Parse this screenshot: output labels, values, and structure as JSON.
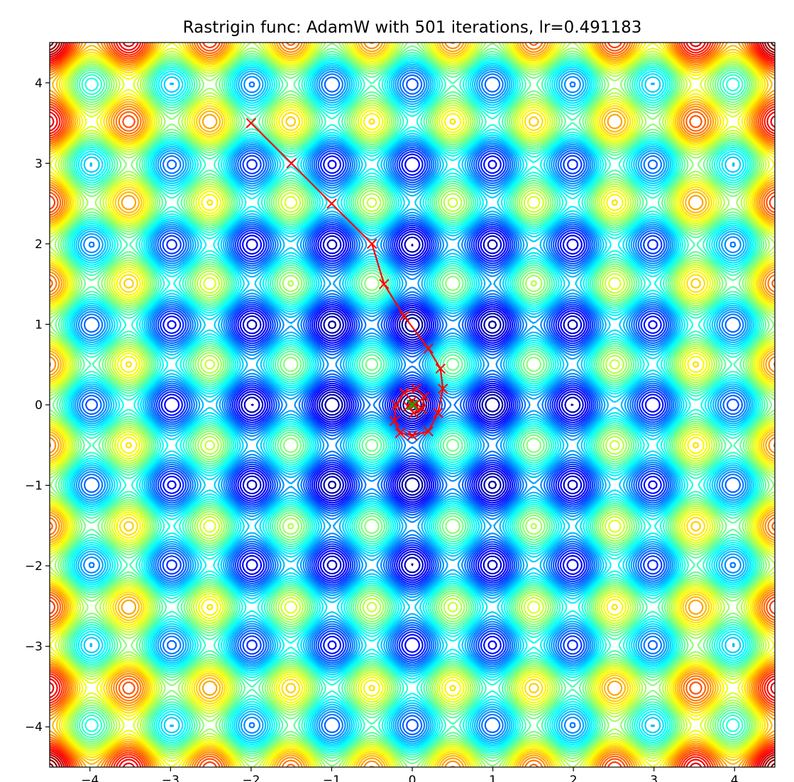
{
  "chart_data": {
    "type": "contour",
    "title": "Rastrigin func: AdamW with 501 iterations, lr=0.491183",
    "xlabel": "",
    "ylabel": "",
    "xlim": [
      -4.5,
      4.5
    ],
    "ylim": [
      -4.5,
      4.5
    ],
    "x_ticks": [
      -4,
      -3,
      -2,
      -1,
      0,
      1,
      2,
      3,
      4
    ],
    "y_ticks": [
      -4,
      -3,
      -2,
      -1,
      0,
      1,
      2,
      3,
      4
    ],
    "x_tick_labels": [
      "−4",
      "−3",
      "−2",
      "−1",
      "0",
      "1",
      "2",
      "3",
      "4"
    ],
    "y_tick_labels": [
      "−4",
      "−3",
      "−2",
      "−1",
      "0",
      "1",
      "2",
      "3",
      "4"
    ],
    "function": "Rastrigin",
    "colormap": "jet",
    "grid": false,
    "path": {
      "name": "AdamW",
      "color": "#ff0000",
      "marker": "x",
      "points": [
        [
          -2.0,
          3.5
        ],
        [
          -1.5,
          3.0
        ],
        [
          -1.0,
          2.5
        ],
        [
          -0.5,
          2.0
        ],
        [
          -0.35,
          1.5
        ],
        [
          -0.1,
          1.1
        ],
        [
          0.2,
          0.7
        ],
        [
          0.35,
          0.45
        ],
        [
          0.38,
          0.2
        ],
        [
          0.32,
          -0.1
        ],
        [
          0.2,
          -0.33
        ],
        [
          0.0,
          -0.38
        ],
        [
          -0.15,
          -0.35
        ],
        [
          -0.22,
          -0.2
        ],
        [
          -0.2,
          0.0
        ],
        [
          -0.1,
          0.15
        ],
        [
          0.05,
          0.2
        ],
        [
          0.15,
          0.1
        ],
        [
          0.12,
          -0.05
        ],
        [
          0.02,
          -0.1
        ],
        [
          -0.05,
          -0.02
        ],
        [
          0.0,
          0.05
        ],
        [
          0.03,
          0.0
        ],
        [
          0.0,
          0.0
        ]
      ]
    },
    "minimum": {
      "x": 0,
      "y": 0,
      "color": "#00aa00",
      "marker": "x"
    }
  }
}
